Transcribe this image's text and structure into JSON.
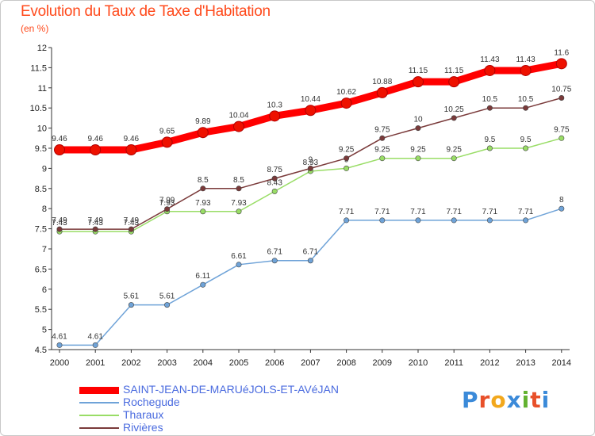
{
  "title": "Evolution du Taux de Taxe d'Habitation",
  "unit_label": "(en %)",
  "logo_text": "Proxiti",
  "chart_data": {
    "type": "line",
    "title": "Evolution du Taux de Taxe d'Habitation",
    "ylabel": "(en %)",
    "x": [
      "2000",
      "2001",
      "2002",
      "2003",
      "2004",
      "2005",
      "2006",
      "2007",
      "2008",
      "2009",
      "2010",
      "2011",
      "2012",
      "2013",
      "2014"
    ],
    "ylim": [
      4.5,
      12
    ],
    "yticks": [
      "4.5",
      "5",
      "5.5",
      "6",
      "6.5",
      "7",
      "7.5",
      "8",
      "8.5",
      "9",
      "9.5",
      "10",
      "10.5",
      "11",
      "11.5",
      "12"
    ],
    "grid": false,
    "legend_position": "bottom-left",
    "series": [
      {
        "name": "SAINT-JEAN-DE-MARUéJOLS-ET-AVéJAN",
        "color": "#ff0000",
        "values": [
          9.46,
          9.46,
          9.46,
          9.65,
          9.89,
          10.04,
          10.3,
          10.44,
          10.62,
          10.88,
          11.15,
          11.15,
          11.43,
          11.43,
          11.6
        ],
        "labels": [
          "9.46",
          "9.46",
          "9.46",
          "9.65",
          "9.89",
          "10.04",
          "10.3",
          "10.44",
          "10.62",
          "10.88",
          "11.15",
          "11.15",
          "11.43",
          "11.43",
          "11.6"
        ]
      },
      {
        "name": "Rochegude",
        "color": "#6fa3d8",
        "values": [
          4.61,
          4.61,
          5.61,
          5.61,
          6.11,
          6.61,
          6.71,
          6.71,
          7.71,
          7.71,
          7.71,
          7.71,
          7.71,
          7.71,
          8
        ],
        "labels": [
          "4.61",
          "4.61",
          "5.61",
          "5.61",
          "6.11",
          "6.61",
          "6.71",
          "6.71",
          "7.71",
          "7.71",
          "7.71",
          "7.71",
          "7.71",
          "7.71",
          "8"
        ]
      },
      {
        "name": "Tharaux",
        "color": "#99dd66",
        "values": [
          7.43,
          7.43,
          7.43,
          7.93,
          7.93,
          7.93,
          8.43,
          8.93,
          9,
          9.25,
          9.25,
          9.25,
          9.5,
          9.5,
          9.75
        ],
        "labels": [
          "7.43",
          "7.43",
          "7.43",
          "7.93",
          "7.93",
          "7.93",
          "8.43",
          "8.93",
          "9",
          "9.25",
          "9.25",
          "9.25",
          "9.5",
          "9.5",
          "9.75"
        ]
      },
      {
        "name": "Rivières",
        "color": "#7a3a3a",
        "values": [
          7.49,
          7.49,
          7.49,
          7.99,
          8.5,
          8.5,
          8.75,
          9,
          9.25,
          9.75,
          10,
          10.25,
          10.5,
          10.5,
          10.75
        ],
        "labels": [
          "7.49",
          "7.49",
          "7.49",
          "7.99",
          "8.5",
          "8.5",
          "8.75",
          "9",
          "9.25",
          "9.75",
          "10",
          "10.25",
          "10.5",
          "10.5",
          "10.75"
        ]
      }
    ]
  }
}
